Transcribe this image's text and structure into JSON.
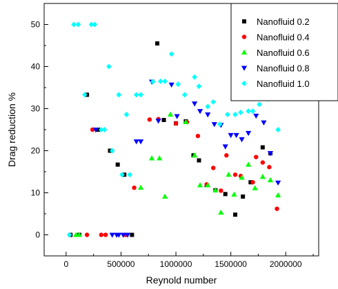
{
  "chart_data": {
    "type": "scatter",
    "title": "",
    "xlabel": "Reynold number",
    "ylabel": "Drag reduction %",
    "xlim": [
      -200000,
      2300000
    ],
    "ylim": [
      -5,
      55
    ],
    "x_ticks": [
      0,
      500000,
      1000000,
      1500000,
      2000000
    ],
    "x_tick_labels": [
      "0",
      "500000",
      "1000000",
      "1500000",
      "2000000"
    ],
    "y_ticks": [
      0,
      10,
      20,
      30,
      40,
      50
    ],
    "y_tick_labels": [
      "0",
      "10",
      "20",
      "30",
      "40",
      "50"
    ],
    "grid": false,
    "legend_position": "top-right",
    "series": [
      {
        "name": "Nanofluid 0.2",
        "color": "#000000",
        "marker": "square",
        "points": [
          [
            40000,
            0
          ],
          [
            120000,
            0
          ],
          [
            190000,
            33.3
          ],
          [
            290000,
            25
          ],
          [
            400000,
            20
          ],
          [
            470000,
            16.7
          ],
          [
            530000,
            14.3
          ],
          [
            600000,
            0
          ],
          [
            830000,
            45.5
          ],
          [
            890000,
            27.3
          ],
          [
            1000000,
            26.5
          ],
          [
            1090000,
            27
          ],
          [
            1160000,
            18.9
          ],
          [
            1210000,
            17.7
          ],
          [
            1280000,
            11.8
          ],
          [
            1360000,
            10.6
          ],
          [
            1450000,
            9.7
          ],
          [
            1540000,
            4.8
          ],
          [
            1610000,
            9.1
          ],
          [
            1680000,
            12.5
          ],
          [
            1790000,
            20.8
          ],
          [
            1860000,
            19.4
          ]
        ]
      },
      {
        "name": "Nanofluid 0.4",
        "color": "#ff0000",
        "marker": "circle",
        "points": [
          [
            190000,
            0
          ],
          [
            240000,
            25
          ],
          [
            320000,
            0
          ],
          [
            360000,
            0
          ],
          [
            540000,
            0
          ],
          [
            620000,
            11.2
          ],
          [
            760000,
            27.4
          ],
          [
            840000,
            27.5
          ],
          [
            1000000,
            26.5
          ],
          [
            1100000,
            26.8
          ],
          [
            1200000,
            23.5
          ],
          [
            1280000,
            12
          ],
          [
            1340000,
            15.9
          ],
          [
            1410000,
            10.5
          ],
          [
            1460000,
            18.9
          ],
          [
            1540000,
            14.3
          ],
          [
            1590000,
            14
          ],
          [
            1700000,
            12.5
          ],
          [
            1730000,
            18.5
          ],
          [
            1790000,
            17.2
          ],
          [
            1850000,
            16.1
          ],
          [
            1920000,
            6.2
          ]
        ]
      },
      {
        "name": "Nanofluid 0.6",
        "color": "#00ff00",
        "marker": "triangle-up",
        "points": [
          [
            90000,
            0
          ],
          [
            120000,
            0
          ],
          [
            680000,
            11.2
          ],
          [
            780000,
            18.2
          ],
          [
            850000,
            18.2
          ],
          [
            900000,
            9.1
          ],
          [
            950000,
            28.6
          ],
          [
            1090000,
            26.8
          ],
          [
            1170000,
            18.9
          ],
          [
            1220000,
            11.8
          ],
          [
            1290000,
            11.8
          ],
          [
            1360000,
            10.6
          ],
          [
            1410000,
            5.3
          ],
          [
            1480000,
            14.3
          ],
          [
            1530000,
            9.6
          ],
          [
            1600000,
            13.6
          ],
          [
            1660000,
            16.7
          ],
          [
            1720000,
            11.1
          ],
          [
            1790000,
            13.8
          ],
          [
            1860000,
            13
          ],
          [
            1930000,
            9.4
          ]
        ]
      },
      {
        "name": "Nanofluid 0.8",
        "color": "#0000ff",
        "marker": "triangle-down",
        "points": [
          [
            270000,
            25
          ],
          [
            420000,
            0
          ],
          [
            460000,
            0
          ],
          [
            480000,
            0
          ],
          [
            520000,
            0
          ],
          [
            560000,
            0
          ],
          [
            640000,
            22.2
          ],
          [
            680000,
            22.2
          ],
          [
            780000,
            36.4
          ],
          [
            840000,
            27.1
          ],
          [
            960000,
            35.7
          ],
          [
            1010000,
            28.2
          ],
          [
            1170000,
            31.2
          ],
          [
            1220000,
            29.4
          ],
          [
            1290000,
            28.6
          ],
          [
            1350000,
            26.3
          ],
          [
            1410000,
            26.1
          ],
          [
            1450000,
            21
          ],
          [
            1500000,
            23.7
          ],
          [
            1550000,
            23.7
          ],
          [
            1600000,
            22.7
          ],
          [
            1660000,
            24.2
          ],
          [
            1730000,
            28.3
          ],
          [
            1800000,
            26.7
          ],
          [
            1860000,
            19.4
          ],
          [
            1930000,
            12.4
          ]
        ]
      },
      {
        "name": "Nanofluid 1.0",
        "color": "#00ffff",
        "marker": "diamond",
        "points": [
          [
            30000,
            0
          ],
          [
            70000,
            50
          ],
          [
            110000,
            50
          ],
          [
            170000,
            33.3
          ],
          [
            230000,
            50
          ],
          [
            260000,
            50
          ],
          [
            320000,
            25
          ],
          [
            350000,
            25
          ],
          [
            390000,
            40
          ],
          [
            420000,
            20
          ],
          [
            480000,
            33.3
          ],
          [
            510000,
            14.3
          ],
          [
            550000,
            28.6
          ],
          [
            580000,
            14.3
          ],
          [
            640000,
            33.3
          ],
          [
            680000,
            33.3
          ],
          [
            790000,
            36.4
          ],
          [
            860000,
            36.5
          ],
          [
            900000,
            36.5
          ],
          [
            960000,
            43
          ],
          [
            1020000,
            35.8
          ],
          [
            1080000,
            33.3
          ],
          [
            1170000,
            37.5
          ],
          [
            1210000,
            35.3
          ],
          [
            1290000,
            30.5
          ],
          [
            1340000,
            31.6
          ],
          [
            1400000,
            26.3
          ],
          [
            1470000,
            28.6
          ],
          [
            1540000,
            28.6
          ],
          [
            1590000,
            29.1
          ],
          [
            1660000,
            29.4
          ],
          [
            1700000,
            29.4
          ],
          [
            1760000,
            31
          ],
          [
            1840000,
            32.3
          ],
          [
            1930000,
            25
          ]
        ]
      }
    ]
  }
}
